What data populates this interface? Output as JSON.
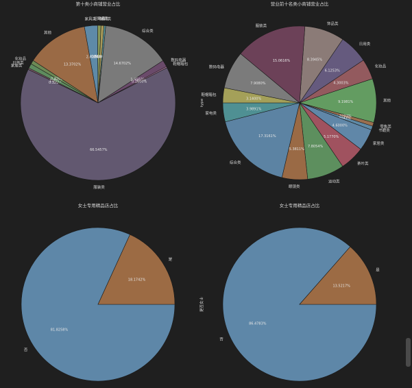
{
  "chart_data": [
    {
      "type": "pie",
      "title": "第十类小商铺营业占比",
      "ylabel": "",
      "slices": [
        {
          "label": "服装类",
          "pct": "66.5457%",
          "value": 66.5457,
          "color": "#625870"
        },
        {
          "label": "家居类",
          "pct": "0.3221%",
          "value": 0.3221,
          "color": "#7d5a6a"
        },
        {
          "label": "日用类",
          "pct": "1.0111%",
          "value": 1.0111,
          "color": "#5e8b5e"
        },
        {
          "label": "化妆品",
          "pct": "0.8202%",
          "value": 0.8202,
          "color": "#6c8a55"
        },
        {
          "label": "其他",
          "pct": "13.3702%",
          "value": 13.3702,
          "color": "#9a6a45"
        },
        {
          "label": "家具类",
          "pct": "2.8204%",
          "value": 2.8204,
          "color": "#5e8aa8"
        },
        {
          "label": "运动类",
          "pct": "0.7105%",
          "value": 0.7105,
          "color": "#8a9a5a"
        },
        {
          "label": "饰品类",
          "pct": "0.6402%",
          "value": 0.6402,
          "color": "#a89a5a"
        },
        {
          "label": "玩具类",
          "pct": "0.3806%",
          "value": 0.3806,
          "color": "#5a9aa0"
        },
        {
          "label": "综合类",
          "pct": "14.6702%",
          "value": 14.6702,
          "color": "#7a7a7a"
        },
        {
          "label": "数码电器",
          "pct": "1.4503%",
          "value": 1.4503,
          "color": "#6a4a6a"
        },
        {
          "label": "鞋帽箱包",
          "pct": "0.2600%",
          "value": 0.26,
          "color": "#b07aa0"
        }
      ]
    },
    {
      "type": "pie",
      "title": "营业前十名类小商铺营业占比",
      "ylabel": "type",
      "slices": [
        {
          "label": "饰品类",
          "pct": "8.3945%",
          "value": 8.3945,
          "color": "#8b7b77"
        },
        {
          "label": "日用类",
          "pct": "6.1253%",
          "value": 6.1253,
          "color": "#655a7e"
        },
        {
          "label": "化妆品",
          "pct": "4.3003%",
          "value": 4.3003,
          "color": "#935a5e"
        },
        {
          "label": "其他",
          "pct": "9.1981%",
          "value": 9.1981,
          "color": "#639c61"
        },
        {
          "label": "零售类",
          "pct": "0.8003%",
          "value": 0.8003,
          "color": "#9a6f4f"
        },
        {
          "label": "书籍类",
          "pct": "0.8043%",
          "value": 0.8043,
          "color": "#5e8aa6"
        },
        {
          "label": "家居类",
          "pct": "4.6000%",
          "value": 4.6,
          "color": "#6087a8"
        },
        {
          "label": "茶叶类",
          "pct": "5.1770%",
          "value": 5.177,
          "color": "#a0525f"
        },
        {
          "label": "运动类",
          "pct": "7.8054%",
          "value": 7.8054,
          "color": "#5d8f5e"
        },
        {
          "label": "眼镜类",
          "pct": "5.3811%",
          "value": 5.3811,
          "color": "#9a6a45"
        },
        {
          "label": "综合类",
          "pct": "17.3161%",
          "value": 17.3161,
          "color": "#5c83a3"
        },
        {
          "label": "家电类",
          "pct": "3.9891%",
          "value": 3.9891,
          "color": "#4f9093"
        },
        {
          "label": "鞋帽箱包",
          "pct": "3.1400%",
          "value": 3.14,
          "color": "#a4a059"
        },
        {
          "label": "数码电器",
          "pct": "7.9080%",
          "value": 7.908,
          "color": "#7b7b7b"
        },
        {
          "label": "服装类",
          "pct": "15.0616%",
          "value": 15.0616,
          "color": "#6c4158"
        }
      ]
    },
    {
      "type": "pie",
      "title": "女士专用精品店占比",
      "ylabel": "",
      "slices": [
        {
          "label": "否",
          "pct": "81.8258%",
          "value": 81.8258,
          "color": "#5e87a8"
        },
        {
          "label": "是",
          "pct": "18.1742%",
          "value": 18.1742,
          "color": "#9c6b44"
        }
      ]
    },
    {
      "type": "pie",
      "title": "女士专用精品店占比",
      "ylabel": "是否女士",
      "slices": [
        {
          "label": "否",
          "pct": "86.4783%",
          "value": 86.4783,
          "color": "#5e87a8"
        },
        {
          "label": "是",
          "pct": "13.5217%",
          "value": 13.5217,
          "color": "#9c6b44"
        }
      ]
    }
  ]
}
